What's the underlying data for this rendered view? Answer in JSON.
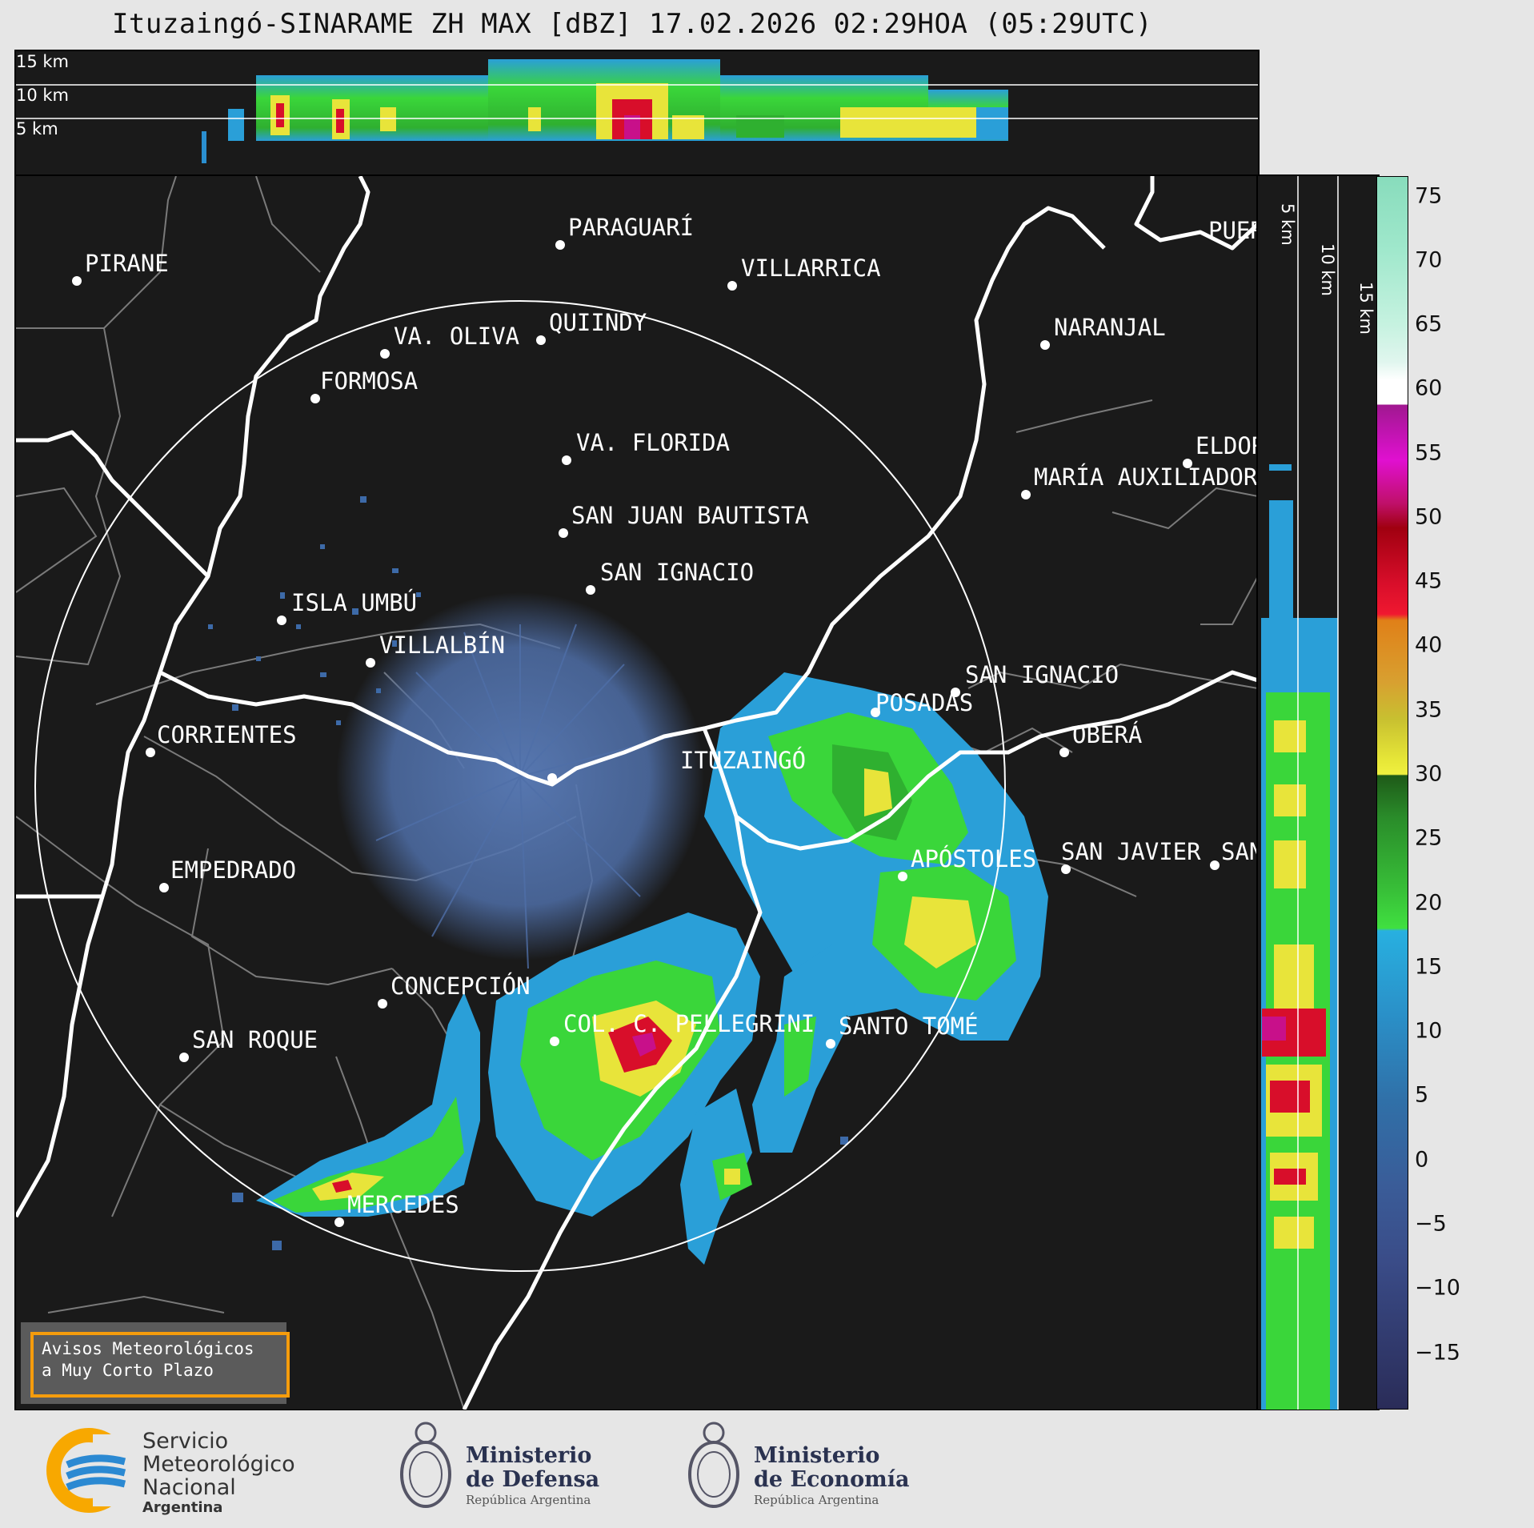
{
  "title": "Ituzaingó-SINARAME ZH MAX [dBZ] 17.02.2026 02:29HOA (05:29UTC)",
  "top_panel": {
    "km_labels": [
      "15 km",
      "10 km",
      "5 km"
    ]
  },
  "side_panel": {
    "km_labels": [
      "5 km",
      "10 km",
      "15 km"
    ]
  },
  "cities": [
    {
      "name": "PARAGUARÍ"
    },
    {
      "name": "VILLARRICA"
    },
    {
      "name": "PIRANE"
    },
    {
      "name": "QUIINDY"
    },
    {
      "name": "VA. OLIVA"
    },
    {
      "name": "NARANJAL"
    },
    {
      "name": "FORMOSA"
    },
    {
      "name": "VA. FLORIDA"
    },
    {
      "name": "ELDOR"
    },
    {
      "name": "MARÍA AUXILIADOR"
    },
    {
      "name": "SAN JUAN BAUTISTA"
    },
    {
      "name": "SAN IGNACIO"
    },
    {
      "name": "ISLA UMBÚ"
    },
    {
      "name": "VILLALBÍN"
    },
    {
      "name": "SAN IGNACIO"
    },
    {
      "name": "POSADAS"
    },
    {
      "name": "CORRIENTES"
    },
    {
      "name": "OBERÁ"
    },
    {
      "name": "ITUZAINGÓ"
    },
    {
      "name": "EMPEDRADO"
    },
    {
      "name": "APÓSTOLES"
    },
    {
      "name": "SAN JAVIER"
    },
    {
      "name": "SAN"
    },
    {
      "name": "CONCEPCIÓN"
    },
    {
      "name": "COL. C. PELLEGRINI"
    },
    {
      "name": "SANTO TOMÉ"
    },
    {
      "name": "SAN ROQUE"
    },
    {
      "name": "MERCEDES"
    },
    {
      "name": "PUER"
    }
  ],
  "colorbar": {
    "ticks": [
      "75",
      "70",
      "65",
      "60",
      "55",
      "50",
      "45",
      "40",
      "35",
      "30",
      "25",
      "20",
      "15",
      "10",
      "5",
      "0",
      "−5",
      "−10",
      "−15"
    ],
    "min": -20,
    "max": 77
  },
  "alert": {
    "line1": "Avisos Meteorológicos",
    "line2": "a Muy Corto Plazo",
    "border_color": "#f59c0c"
  },
  "footer": {
    "smn": [
      "Servicio",
      "Meteorológico",
      "Nacional",
      "Argentina"
    ],
    "defensa": [
      "Ministerio",
      "de Defensa",
      "República Argentina"
    ],
    "economia": [
      "Ministerio",
      "de Economía",
      "República Argentina"
    ]
  },
  "colors": {
    "background": "#1a1a1a",
    "smn_blue": "#2b89d2",
    "smn_orange": "#f8a800"
  }
}
